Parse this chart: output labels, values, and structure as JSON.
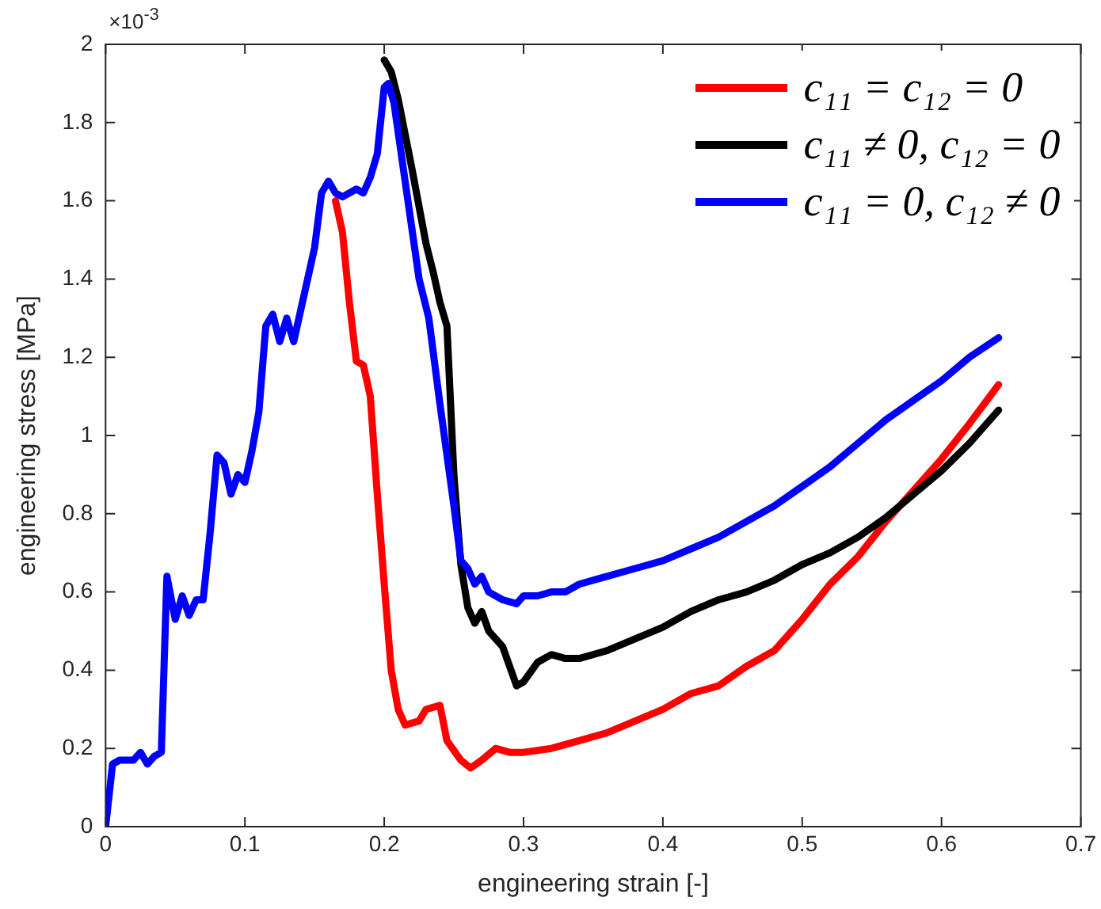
{
  "chart_data": {
    "type": "line",
    "xlabel": "engineering strain [-]",
    "ylabel": "engineering stress [MPa]",
    "annotations": [
      "×10$^{-3}$"
    ],
    "xlim": [
      0,
      0.7
    ],
    "xticks": [
      0,
      0.1,
      0.2,
      0.3,
      0.4,
      0.5,
      0.6,
      0.7
    ],
    "ylim": [
      0,
      2
    ],
    "yticks": [
      0,
      0.2,
      0.4,
      0.6,
      0.8,
      1,
      1.2,
      1.4,
      1.6,
      1.8,
      2
    ],
    "grid": false,
    "legend": "top right",
    "marker": "none",
    "line_style": "solid",
    "series": [
      {
        "name": "c₁₁ = c₁₂ = 0",
        "color": "#ff0000",
        "x": [
          0.165,
          0.17,
          0.175,
          0.18,
          0.185,
          0.19,
          0.195,
          0.2,
          0.205,
          0.21,
          0.215,
          0.225,
          0.23,
          0.24,
          0.245,
          0.255,
          0.262,
          0.27,
          0.28,
          0.29,
          0.3,
          0.32,
          0.34,
          0.36,
          0.38,
          0.4,
          0.42,
          0.44,
          0.46,
          0.48,
          0.5,
          0.52,
          0.54,
          0.56,
          0.58,
          0.6,
          0.62,
          0.641
        ],
        "values": [
          1.6,
          1.52,
          1.34,
          1.19,
          1.18,
          1.1,
          0.85,
          0.62,
          0.4,
          0.3,
          0.26,
          0.27,
          0.3,
          0.31,
          0.22,
          0.17,
          0.15,
          0.17,
          0.2,
          0.19,
          0.19,
          0.2,
          0.22,
          0.24,
          0.27,
          0.3,
          0.34,
          0.36,
          0.41,
          0.45,
          0.53,
          0.62,
          0.69,
          0.78,
          0.86,
          0.94,
          1.03,
          1.13
        ]
      },
      {
        "name": "c₁₁ ≠ 0, c₁₂ = 0",
        "color": "#000000",
        "x": [
          0.2,
          0.205,
          0.21,
          0.22,
          0.23,
          0.235,
          0.24,
          0.245,
          0.25,
          0.255,
          0.26,
          0.265,
          0.27,
          0.275,
          0.285,
          0.29,
          0.295,
          0.3,
          0.31,
          0.32,
          0.33,
          0.34,
          0.36,
          0.38,
          0.4,
          0.42,
          0.44,
          0.46,
          0.48,
          0.5,
          0.52,
          0.54,
          0.56,
          0.58,
          0.6,
          0.62,
          0.641
        ],
        "values": [
          1.96,
          1.93,
          1.86,
          1.68,
          1.49,
          1.42,
          1.34,
          1.28,
          0.9,
          0.67,
          0.56,
          0.52,
          0.55,
          0.5,
          0.46,
          0.41,
          0.36,
          0.37,
          0.42,
          0.44,
          0.43,
          0.43,
          0.45,
          0.48,
          0.51,
          0.55,
          0.58,
          0.6,
          0.63,
          0.67,
          0.7,
          0.74,
          0.79,
          0.85,
          0.91,
          0.98,
          1.065
        ]
      },
      {
        "name": "c₁₁ = 0, c₁₂ ≠ 0",
        "color": "#0000ff",
        "x": [
          0,
          0.005,
          0.01,
          0.02,
          0.025,
          0.03,
          0.035,
          0.04,
          0.044,
          0.05,
          0.055,
          0.06,
          0.065,
          0.07,
          0.075,
          0.08,
          0.085,
          0.09,
          0.095,
          0.1,
          0.105,
          0.11,
          0.115,
          0.12,
          0.125,
          0.13,
          0.135,
          0.14,
          0.145,
          0.15,
          0.155,
          0.16,
          0.165,
          0.17,
          0.18,
          0.185,
          0.19,
          0.195,
          0.2,
          0.203,
          0.207,
          0.215,
          0.225,
          0.232,
          0.24,
          0.25,
          0.255,
          0.26,
          0.265,
          0.27,
          0.275,
          0.285,
          0.295,
          0.3,
          0.31,
          0.32,
          0.33,
          0.34,
          0.36,
          0.38,
          0.4,
          0.42,
          0.44,
          0.46,
          0.48,
          0.5,
          0.52,
          0.54,
          0.56,
          0.58,
          0.6,
          0.62,
          0.641
        ],
        "values": [
          0,
          0.16,
          0.17,
          0.17,
          0.19,
          0.16,
          0.18,
          0.19,
          0.64,
          0.53,
          0.59,
          0.54,
          0.58,
          0.58,
          0.75,
          0.95,
          0.93,
          0.85,
          0.9,
          0.88,
          0.96,
          1.06,
          1.28,
          1.31,
          1.24,
          1.3,
          1.24,
          1.32,
          1.4,
          1.48,
          1.62,
          1.65,
          1.62,
          1.61,
          1.63,
          1.62,
          1.66,
          1.72,
          1.89,
          1.9,
          1.85,
          1.65,
          1.4,
          1.3,
          1.08,
          0.82,
          0.68,
          0.66,
          0.62,
          0.64,
          0.6,
          0.58,
          0.57,
          0.59,
          0.59,
          0.6,
          0.6,
          0.62,
          0.64,
          0.66,
          0.68,
          0.71,
          0.74,
          0.78,
          0.82,
          0.87,
          0.92,
          0.98,
          1.04,
          1.09,
          1.14,
          1.2,
          1.25
        ]
      }
    ]
  }
}
